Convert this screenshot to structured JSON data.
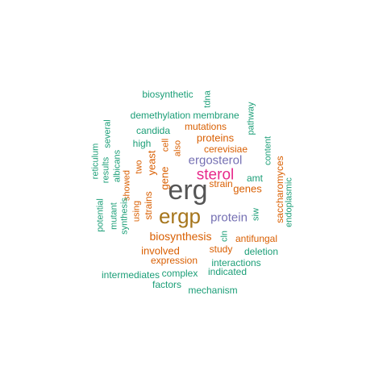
{
  "colors": {
    "teal": "#1b9e77",
    "orange": "#d95f02",
    "purple": "#7570b3",
    "magenta": "#e7298a",
    "olive": "#a6761d",
    "gray": "#555555"
  },
  "words": [
    {
      "text": "erg",
      "color": "gray",
      "weight": 110,
      "vertical": false
    },
    {
      "text": "ergp",
      "color": "olive",
      "weight": 56,
      "vertical": false
    },
    {
      "text": "sterol",
      "color": "magenta",
      "weight": 38,
      "vertical": false
    },
    {
      "text": "ergosterol",
      "color": "purple",
      "weight": 26,
      "vertical": false
    },
    {
      "text": "protein",
      "color": "purple",
      "weight": 26,
      "vertical": false
    },
    {
      "text": "biosynthesis",
      "color": "orange",
      "weight": 20,
      "vertical": false
    },
    {
      "text": "genes",
      "color": "orange",
      "weight": 18,
      "vertical": false
    },
    {
      "text": "strain",
      "color": "orange",
      "weight": 18,
      "vertical": false
    },
    {
      "text": "proteins",
      "color": "orange",
      "weight": 18,
      "vertical": false
    },
    {
      "text": "involved",
      "color": "orange",
      "weight": 18,
      "vertical": false
    },
    {
      "text": "gene",
      "color": "orange",
      "weight": 18,
      "vertical": true
    },
    {
      "text": "yeast",
      "color": "orange",
      "weight": 18,
      "vertical": true
    },
    {
      "text": "cerevisiae",
      "color": "orange",
      "weight": 16,
      "vertical": false
    },
    {
      "text": "mutations",
      "color": "orange",
      "weight": 16,
      "vertical": false
    },
    {
      "text": "antifungal",
      "color": "orange",
      "weight": 16,
      "vertical": false
    },
    {
      "text": "expression",
      "color": "orange",
      "weight": 16,
      "vertical": false
    },
    {
      "text": "study",
      "color": "orange",
      "weight": 16,
      "vertical": false
    },
    {
      "text": "saccharomyces",
      "color": "orange",
      "weight": 16,
      "vertical": true
    },
    {
      "text": "strains",
      "color": "orange",
      "weight": 16,
      "vertical": true
    },
    {
      "text": "also",
      "color": "orange",
      "weight": 16,
      "vertical": true
    },
    {
      "text": "cell",
      "color": "orange",
      "weight": 16,
      "vertical": true
    },
    {
      "text": "two",
      "color": "orange",
      "weight": 16,
      "vertical": true
    },
    {
      "text": "showed",
      "color": "orange",
      "weight": 15,
      "vertical": true
    },
    {
      "text": "using",
      "color": "orange",
      "weight": 15,
      "vertical": true
    },
    {
      "text": "membrane",
      "color": "teal",
      "weight": 14,
      "vertical": false
    },
    {
      "text": "demethylation",
      "color": "teal",
      "weight": 13,
      "vertical": false
    },
    {
      "text": "biosynthetic",
      "color": "teal",
      "weight": 13,
      "vertical": false
    },
    {
      "text": "candida",
      "color": "teal",
      "weight": 13,
      "vertical": false
    },
    {
      "text": "high",
      "color": "teal",
      "weight": 13,
      "vertical": false
    },
    {
      "text": "interactions",
      "color": "teal",
      "weight": 13,
      "vertical": false
    },
    {
      "text": "deletion",
      "color": "teal",
      "weight": 13,
      "vertical": false
    },
    {
      "text": "indicated",
      "color": "teal",
      "weight": 13,
      "vertical": false
    },
    {
      "text": "complex",
      "color": "teal",
      "weight": 13,
      "vertical": false
    },
    {
      "text": "intermediates",
      "color": "teal",
      "weight": 13,
      "vertical": false
    },
    {
      "text": "factors",
      "color": "teal",
      "weight": 13,
      "vertical": false
    },
    {
      "text": "mechanism",
      "color": "teal",
      "weight": 13,
      "vertical": false
    },
    {
      "text": "amt",
      "color": "teal",
      "weight": 13,
      "vertical": false
    },
    {
      "text": "tdna",
      "color": "teal",
      "weight": 13,
      "vertical": true
    },
    {
      "text": "pathway",
      "color": "teal",
      "weight": 13,
      "vertical": true
    },
    {
      "text": "content",
      "color": "teal",
      "weight": 13,
      "vertical": true
    },
    {
      "text": "several",
      "color": "teal",
      "weight": 13,
      "vertical": true
    },
    {
      "text": "reticulum",
      "color": "teal",
      "weight": 13,
      "vertical": true
    },
    {
      "text": "results",
      "color": "teal",
      "weight": 13,
      "vertical": true
    },
    {
      "text": "albicans",
      "color": "teal",
      "weight": 13,
      "vertical": true
    },
    {
      "text": "potential",
      "color": "teal",
      "weight": 13,
      "vertical": true
    },
    {
      "text": "mutant",
      "color": "teal",
      "weight": 13,
      "vertical": true
    },
    {
      "text": "synthesis",
      "color": "teal",
      "weight": 13,
      "vertical": true
    },
    {
      "text": "endoplasmic",
      "color": "teal",
      "weight": 13,
      "vertical": true
    },
    {
      "text": "siw",
      "color": "teal",
      "weight": 13,
      "vertical": true
    },
    {
      "text": "cln",
      "color": "teal",
      "weight": 13,
      "vertical": true
    }
  ]
}
